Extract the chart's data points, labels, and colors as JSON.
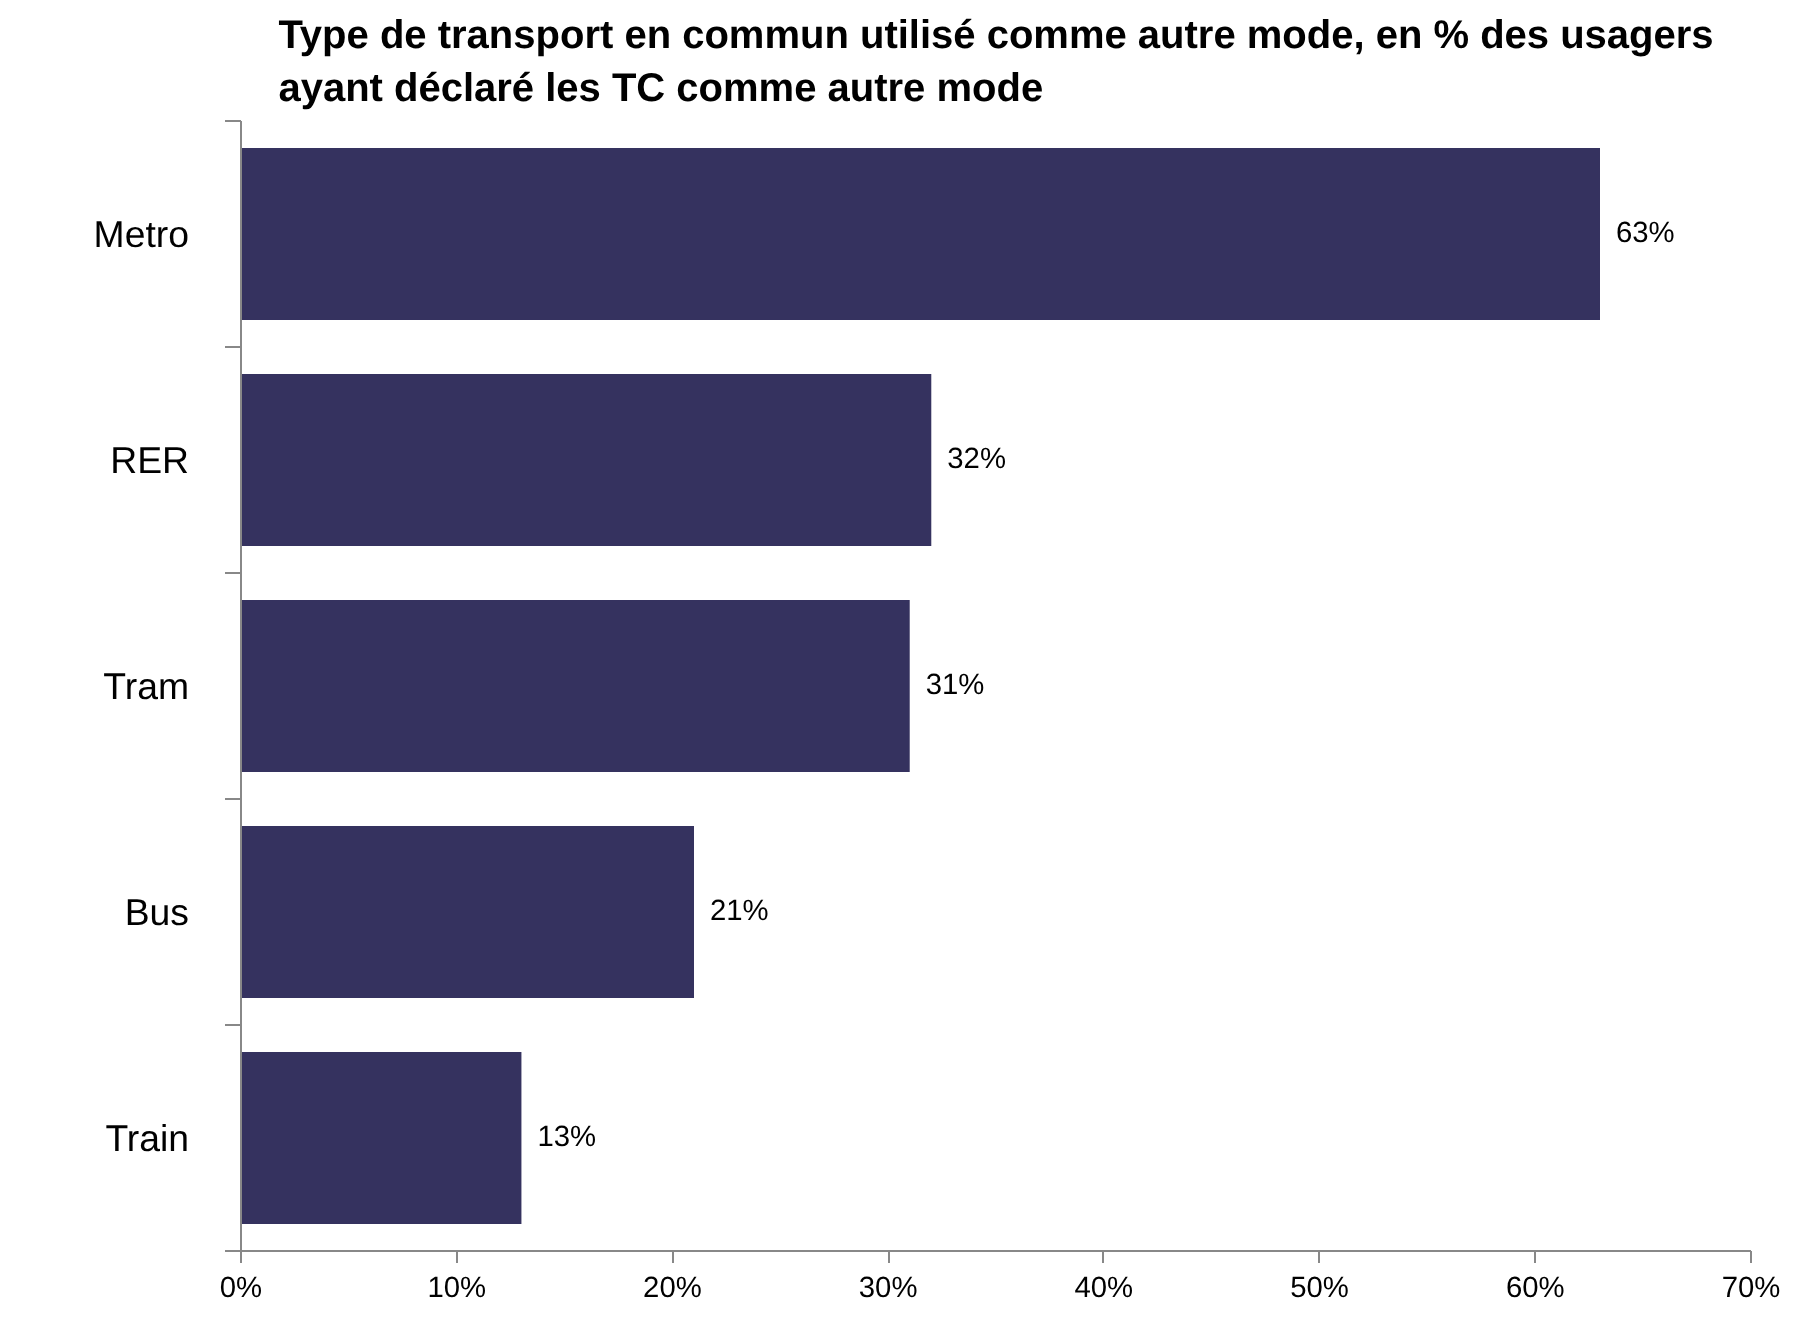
{
  "chart_data": {
    "type": "bar",
    "orientation": "horizontal",
    "title": "Type de transport en commun utilisé comme autre mode, en % des usagers ayant déclaré les TC comme autre mode",
    "categories": [
      "Metro",
      "RER",
      "Tram",
      "Bus",
      "Train"
    ],
    "values": [
      63,
      32,
      31,
      21,
      13
    ],
    "value_labels": [
      "63%",
      "32%",
      "31%",
      "21%",
      "13%"
    ],
    "color": "#35325f",
    "xlim": [
      0,
      70
    ],
    "xticks": [
      {
        "value": 0,
        "label": "0%"
      },
      {
        "value": 10,
        "label": "10%"
      },
      {
        "value": 20,
        "label": "20%"
      },
      {
        "value": 30,
        "label": "30%"
      },
      {
        "value": 40,
        "label": "40%"
      },
      {
        "value": 50,
        "label": "50%"
      },
      {
        "value": 60,
        "label": "60%"
      },
      {
        "value": 70,
        "label": "70%"
      }
    ],
    "grid": false
  }
}
